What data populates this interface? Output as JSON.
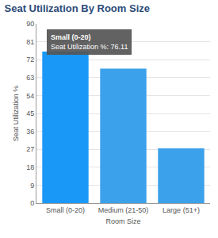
{
  "chart_data": {
    "type": "bar",
    "title": "Seat Utilization By Room Size",
    "x_label": "Room Size",
    "y_label": "Seat Utilization %",
    "categories": [
      "Small (0-20)",
      "Medium (21-50)",
      "Large (51+)"
    ],
    "values": [
      76.11,
      67.5,
      27.5
    ],
    "colors": [
      "#1a98f7",
      "#3ba1ea",
      "#3ba1ea"
    ],
    "ylim": [
      0,
      90
    ],
    "yticks": [
      0,
      9,
      18,
      27,
      36,
      45,
      54,
      63,
      72,
      81,
      90
    ],
    "grid": true,
    "annotations": [
      {
        "x": "Small (0-20)",
        "y": 76.11,
        "text": [
          "Small (0-20)",
          "Seat Utilization %: 76.11"
        ]
      }
    ]
  }
}
